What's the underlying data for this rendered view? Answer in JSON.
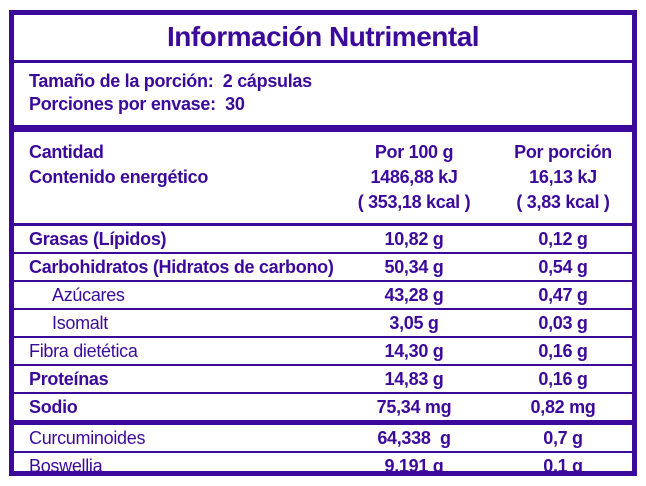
{
  "colors": {
    "ink": "#3B0A9B",
    "background": "#FFFFFF"
  },
  "header": {
    "title": "Información Nutrimental"
  },
  "serving": {
    "line1": "Tamaño de la porción:  2 cápsulas",
    "line2": "Porciones por envase:  30"
  },
  "table": {
    "columns": {
      "amount_label": "Cantidad",
      "per_100g_label": "Por 100 g",
      "per_serving_label": "Por porción"
    },
    "energy": {
      "label": "Contenido energético",
      "per_100g_kj": "1486,88 kJ",
      "per_100g_kcal": "( 353,18 kcal )",
      "per_serving_kj": "16,13 kJ",
      "per_serving_kcal": "( 3,83 kcal )"
    },
    "rows": [
      {
        "label": "Grasas (Lípidos)",
        "per_100g": "10,82 g",
        "per_serving": "0,12 g"
      },
      {
        "label": "Carbohidratos (Hidratos de carbono)",
        "per_100g": "50,34 g",
        "per_serving": "0,54 g"
      },
      {
        "label": "Azúcares",
        "per_100g": "43,28 g",
        "per_serving": "0,47 g"
      },
      {
        "label": "Isomalt",
        "per_100g": "3,05 g",
        "per_serving": "0,03 g"
      },
      {
        "label": "Fibra dietética",
        "per_100g": "14,30 g",
        "per_serving": "0,16 g"
      },
      {
        "label": "Proteínas",
        "per_100g": "14,83 g",
        "per_serving": "0,16 g"
      },
      {
        "label": "Sodio",
        "per_100g": "75,34 mg",
        "per_serving": "0,82 mg"
      },
      {
        "label": "Curcuminoides",
        "per_100g": "64,338  g",
        "per_serving": "0,7 g"
      },
      {
        "label": "Boswellia",
        "per_100g": "9,191 g",
        "per_serving": "0,1 g"
      }
    ]
  }
}
